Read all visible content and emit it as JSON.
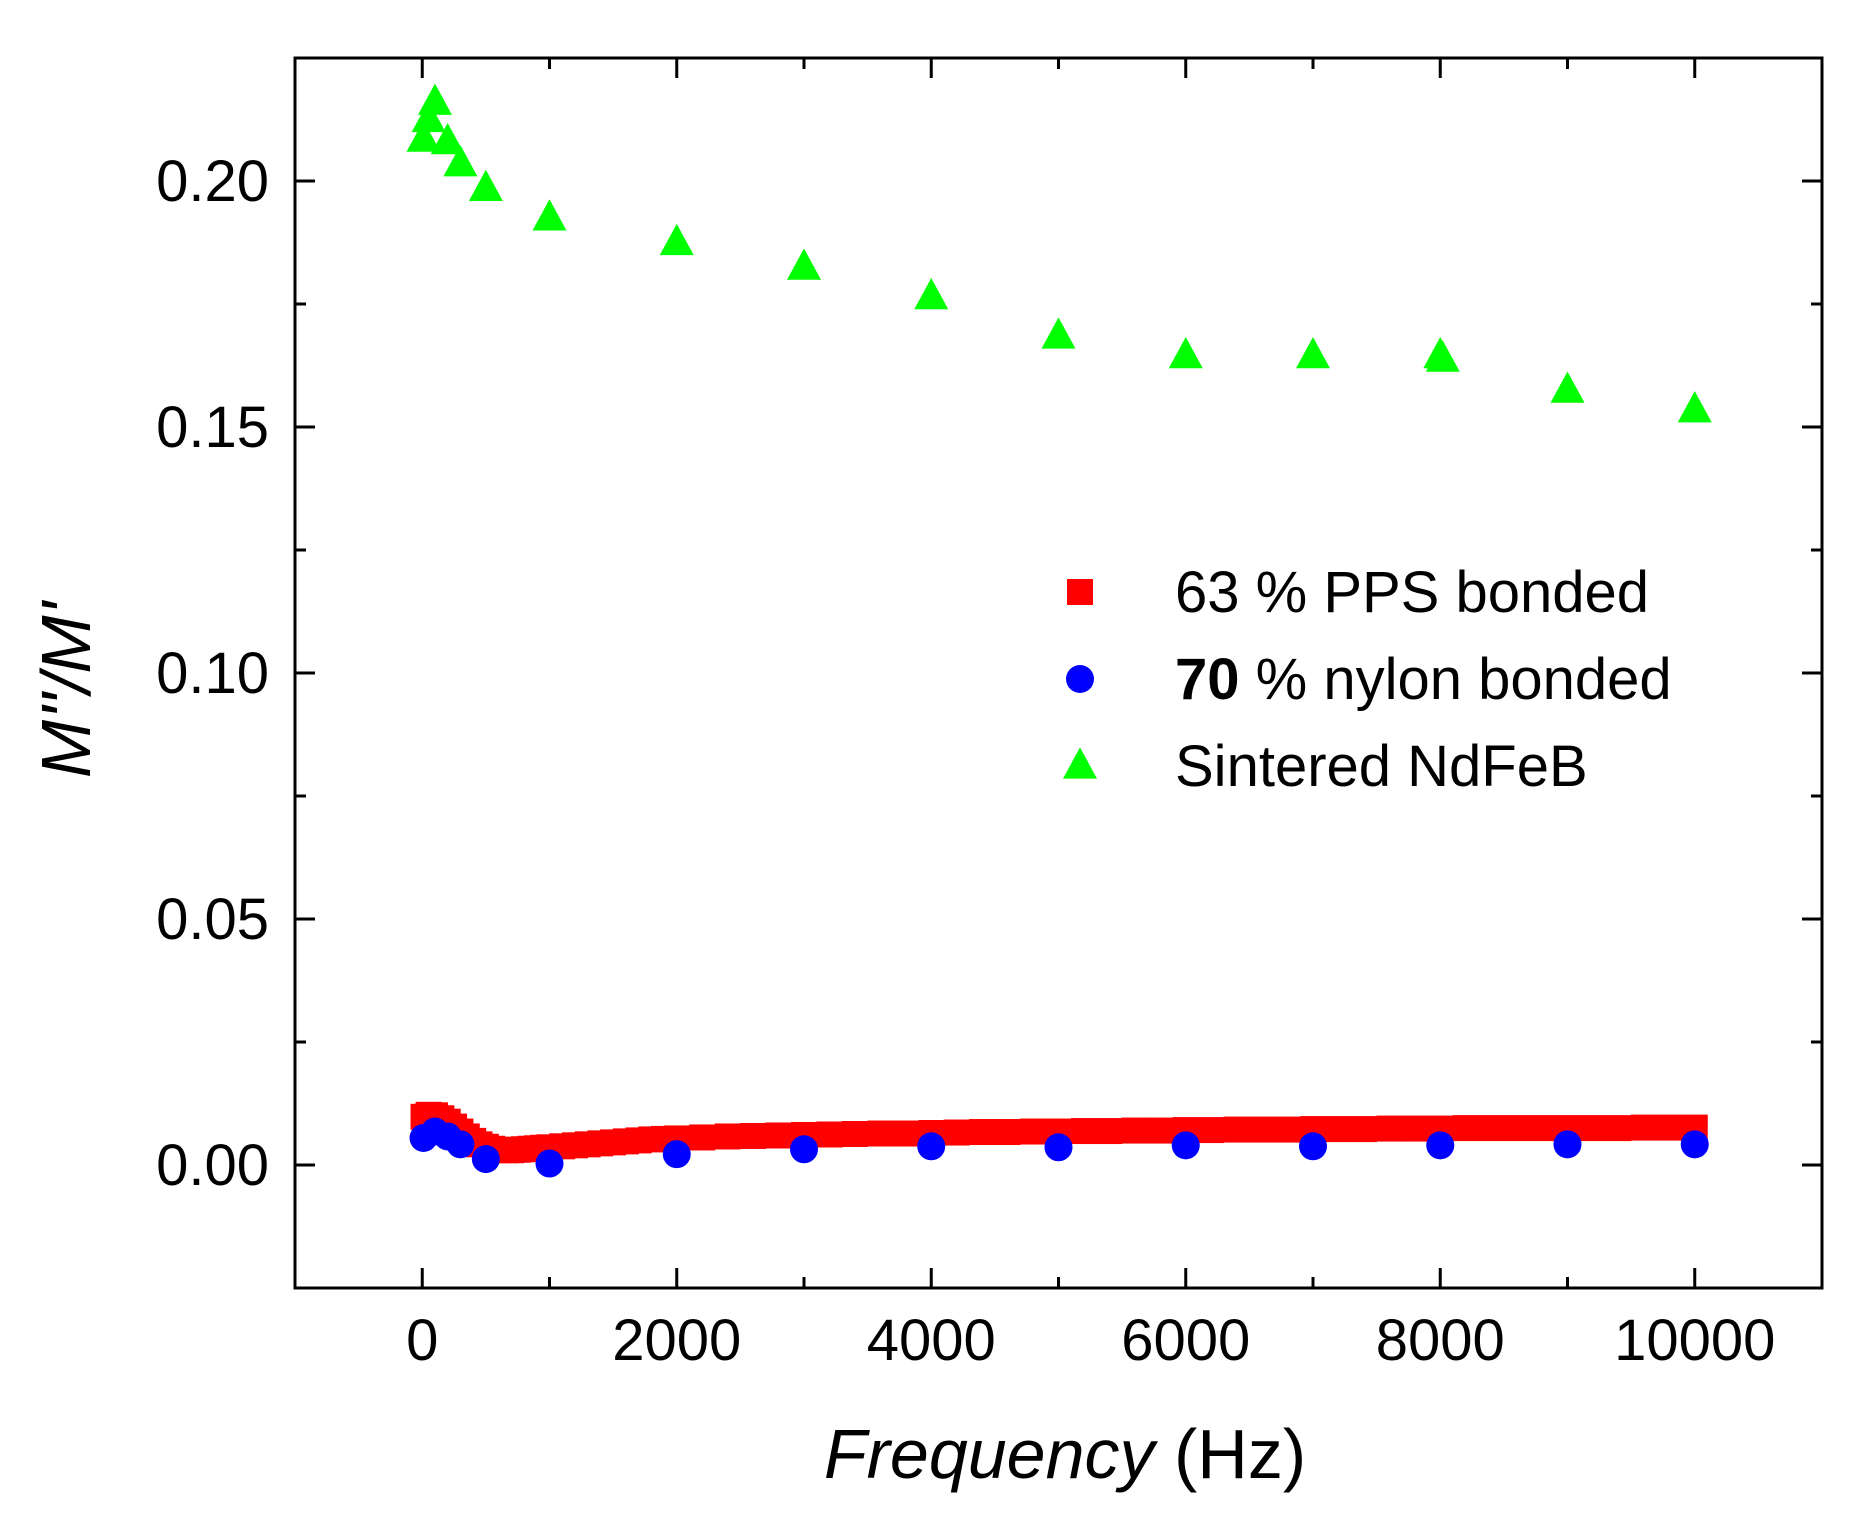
{
  "chart_data": {
    "type": "scatter",
    "title": "",
    "xlabel_italic": "Frequency",
    "xlabel_unit": " (Hz)",
    "ylabel": "M''/M'",
    "xlim": [
      -1000,
      11000
    ],
    "ylim": [
      -0.025,
      0.225
    ],
    "xticks": [
      0,
      2000,
      4000,
      6000,
      8000,
      10000
    ],
    "xtick_labels": [
      "0",
      "2000",
      "4000",
      "6000",
      "8000",
      "10000"
    ],
    "yticks": [
      0.0,
      0.05,
      0.1,
      0.15,
      0.2
    ],
    "ytick_labels": [
      "0.00",
      "0.05",
      "0.10",
      "0.15",
      "0.20"
    ],
    "grid": false,
    "legend_position": "center-right",
    "series": [
      {
        "name": "63 % PPS bonded",
        "legend_bold_prefix": "",
        "legend_rest": "63 % PPS bonded",
        "marker": "square",
        "color": "#ff0000",
        "x": [
          10,
          50,
          100,
          150,
          200,
          250,
          300,
          350,
          400,
          450,
          500,
          550,
          600,
          650,
          700,
          750,
          800,
          850,
          900,
          950,
          1000,
          1100,
          1200,
          1300,
          1400,
          1500,
          1600,
          1700,
          1800,
          1900,
          2000,
          2200,
          2400,
          2600,
          2800,
          3000,
          3200,
          3400,
          3600,
          3800,
          4000,
          4200,
          4400,
          4600,
          4800,
          5000,
          5200,
          5400,
          5600,
          5800,
          6000,
          6200,
          6400,
          6600,
          6800,
          7000,
          7200,
          7400,
          7600,
          7800,
          8000,
          8200,
          8400,
          8600,
          8800,
          9000,
          9200,
          9400,
          9600,
          9800,
          10000
        ],
        "y": [
          0.0098,
          0.0102,
          0.0101,
          0.0095,
          0.0088,
          0.0078,
          0.0068,
          0.0058,
          0.0049,
          0.0042,
          0.0037,
          0.0033,
          0.0031,
          0.003,
          0.003,
          0.0031,
          0.0032,
          0.0033,
          0.0034,
          0.0035,
          0.0036,
          0.0038,
          0.004,
          0.0042,
          0.0044,
          0.0046,
          0.0048,
          0.005,
          0.0052,
          0.0053,
          0.0054,
          0.0056,
          0.0058,
          0.0059,
          0.006,
          0.0061,
          0.0062,
          0.0063,
          0.0064,
          0.0064,
          0.0065,
          0.0066,
          0.0067,
          0.0067,
          0.0068,
          0.0068,
          0.0069,
          0.0069,
          0.007,
          0.007,
          0.0071,
          0.0071,
          0.0072,
          0.0072,
          0.0072,
          0.0073,
          0.0073,
          0.0073,
          0.0074,
          0.0074,
          0.0074,
          0.0075,
          0.0075,
          0.0075,
          0.0075,
          0.0075,
          0.0075,
          0.0075,
          0.0076,
          0.0076,
          0.0076
        ]
      },
      {
        "name": "70 % nylon bonded",
        "legend_bold_prefix": "70",
        "legend_rest": " % nylon bonded",
        "marker": "circle",
        "color": "#0000ff",
        "x": [
          10,
          100,
          200,
          300,
          500,
          1000,
          2000,
          3000,
          4000,
          5000,
          6000,
          7000,
          8000,
          9000,
          10000
        ],
        "y": [
          0.0055,
          0.0068,
          0.0058,
          0.0042,
          0.0012,
          0.0003,
          0.0022,
          0.0032,
          0.0038,
          0.0036,
          0.004,
          0.0038,
          0.004,
          0.0042,
          0.0042
        ]
      },
      {
        "name": "Sintered NdFeB",
        "legend_bold_prefix": "",
        "legend_rest": "Sintered NdFeB",
        "marker": "triangle",
        "color": "#00ff00",
        "x": [
          10,
          50,
          100,
          200,
          300,
          500,
          1000,
          2000,
          3000,
          4000,
          5000,
          6000,
          7000,
          8000,
          8020,
          9000,
          10000
        ],
        "y": [
          0.2085,
          0.2125,
          0.216,
          0.208,
          0.2035,
          0.1985,
          0.1925,
          0.1875,
          0.1825,
          0.1765,
          0.1685,
          0.1645,
          0.1645,
          0.1645,
          0.1638,
          0.1575,
          0.1535
        ]
      }
    ]
  }
}
